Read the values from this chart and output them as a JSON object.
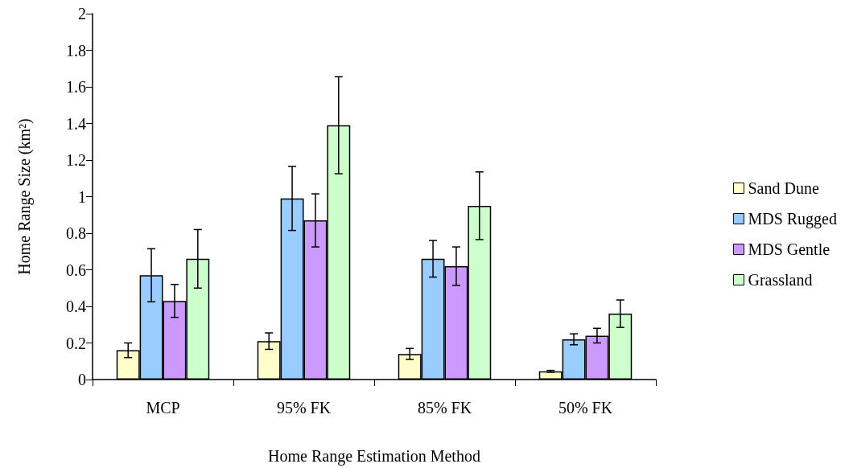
{
  "chart_data": {
    "type": "bar",
    "xlabel": "Home Range Estimation Method",
    "ylabel": "Home Range Size (km²)",
    "categories": [
      "MCP",
      "95% FK",
      "85% FK",
      "50% FK"
    ],
    "series": [
      {
        "name": "Sand Dune",
        "color": "#ffffcc",
        "values": [
          0.16,
          0.21,
          0.14,
          0.045
        ],
        "errors": [
          0.04,
          0.045,
          0.03,
          0.005
        ]
      },
      {
        "name": "MDS Rugged",
        "color": "#99ccff",
        "values": [
          0.57,
          0.99,
          0.66,
          0.22
        ],
        "errors": [
          0.145,
          0.175,
          0.1,
          0.03
        ]
      },
      {
        "name": "MDS Gentle",
        "color": "#cc99ff",
        "values": [
          0.43,
          0.87,
          0.62,
          0.24
        ],
        "errors": [
          0.09,
          0.145,
          0.105,
          0.04
        ]
      },
      {
        "name": "Grassland",
        "color": "#ccffcc",
        "values": [
          0.66,
          1.39,
          0.95,
          0.36
        ],
        "errors": [
          0.16,
          0.265,
          0.185,
          0.075
        ]
      }
    ],
    "ylim": [
      0,
      2
    ],
    "yticks": [
      0,
      0.2,
      0.4,
      0.6,
      0.8,
      1,
      1.2,
      1.4,
      1.6,
      1.8,
      2
    ],
    "grid": false,
    "legend": "right"
  }
}
